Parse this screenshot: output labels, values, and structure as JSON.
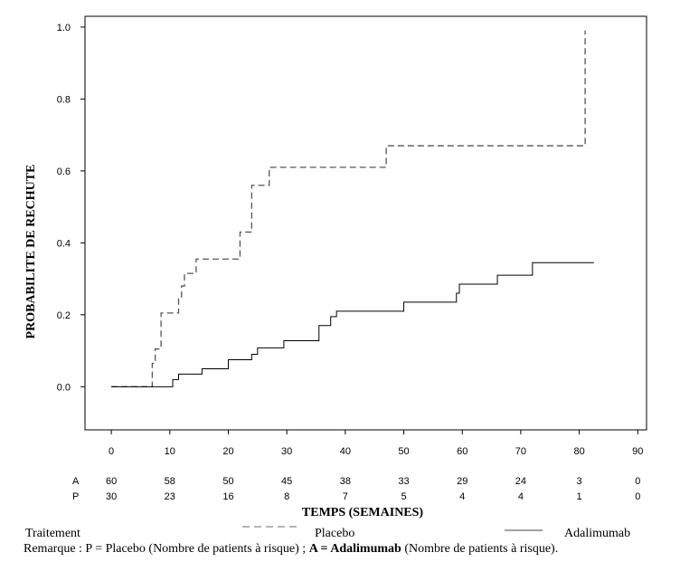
{
  "chart_data": {
    "type": "line",
    "title": "",
    "xlabel": "TEMPS (SEMAINES)",
    "ylabel": "PROBABILITE DE RECHUTE",
    "xlim": [
      -4.5,
      91.5
    ],
    "ylim": [
      -0.12,
      1.03
    ],
    "x_ticks": [
      0,
      10,
      20,
      30,
      40,
      50,
      60,
      70,
      80,
      90
    ],
    "y_ticks": [
      0.0,
      0.2,
      0.4,
      0.6,
      0.8,
      1.0
    ],
    "x_tick_labels": [
      "0",
      "10",
      "20",
      "30",
      "40",
      "50",
      "60",
      "70",
      "80",
      "90"
    ],
    "y_tick_labels": [
      "0.0",
      "0.2",
      "0.4",
      "0.6",
      "0.8",
      "1.0"
    ],
    "series": [
      {
        "name": "Placebo",
        "style": "dashed",
        "color": "#555555",
        "x": [
          0,
          7,
          7.5,
          8.5,
          11.5,
          12,
          12.5,
          14.5,
          22,
          22.5,
          24,
          26,
          27,
          47,
          81
        ],
        "y": [
          0,
          0.065,
          0.105,
          0.205,
          0.25,
          0.28,
          0.315,
          0.355,
          0.43,
          0.43,
          0.56,
          0.56,
          0.61,
          0.67,
          0.99
        ]
      },
      {
        "name": "Adalimumab",
        "style": "solid",
        "color": "#000000",
        "x": [
          0,
          10.5,
          11.5,
          15.5,
          20,
          24,
          25,
          29.5,
          35.5,
          37.5,
          38.5,
          50,
          59,
          59.5,
          66,
          72,
          82.5
        ],
        "y": [
          0,
          0.02,
          0.035,
          0.05,
          0.075,
          0.09,
          0.108,
          0.128,
          0.17,
          0.195,
          0.21,
          0.235,
          0.26,
          0.285,
          0.31,
          0.345,
          0.345
        ]
      }
    ],
    "risk_table": {
      "times": [
        0,
        10,
        20,
        30,
        40,
        50,
        60,
        70,
        80,
        90
      ],
      "rows": [
        {
          "label": "A",
          "values": [
            "60",
            "58",
            "50",
            "45",
            "38",
            "33",
            "29",
            "24",
            "3",
            "0"
          ]
        },
        {
          "label": "P",
          "values": [
            "30",
            "23",
            "16",
            "8",
            "7",
            "5",
            "4",
            "4",
            "1",
            "0"
          ]
        }
      ]
    },
    "legend": {
      "title": "Traitement",
      "items": [
        {
          "label": "Placebo",
          "style": "dashed",
          "color": "#888888"
        },
        {
          "label": "Adalimumab",
          "style": "solid",
          "color": "#444444"
        }
      ]
    }
  },
  "note": {
    "prefix": "Remarque : P = Placebo (Nombre de patients à risque) ; ",
    "bold": "A = Adalimumab",
    "suffix": " (Nombre de patients à risque)."
  }
}
